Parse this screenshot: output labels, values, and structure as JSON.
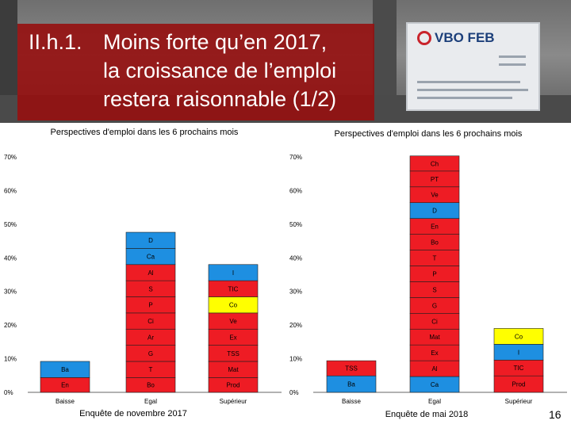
{
  "slide": {
    "title_code": "II.h.1.",
    "title_lines": [
      "Moins forte qu’en 2017,",
      "la croissance de l’emploi",
      "restera raisonnable (1/2)"
    ],
    "sign_brand": "VBO FEB",
    "page_number": "16"
  },
  "chart_data": [
    {
      "type": "bar",
      "stacked": true,
      "title": "Perspectives d'emploi dans les 6 prochains mois",
      "caption": "Enquête de novembre 2017",
      "categories": [
        "Baisse",
        "Egal",
        "Supérieur"
      ],
      "yticks": [
        "0%",
        "10%",
        "20%",
        "30%",
        "40%",
        "50%",
        "60%",
        "70%"
      ],
      "ylim": [
        0,
        70
      ],
      "colors": {
        "Red": "#ee1c24",
        "Blue": "#1e8fe1",
        "Yellow": "#ffff00"
      },
      "segments": [
        [
          {
            "label": "En",
            "value": 4.4,
            "color": "Red"
          },
          {
            "label": "Ba",
            "value": 4.8,
            "color": "Blue"
          }
        ],
        [
          {
            "label": "Bo",
            "value": 4.4,
            "color": "Red"
          },
          {
            "label": "T",
            "value": 4.8,
            "color": "Red"
          },
          {
            "label": "G",
            "value": 4.8,
            "color": "Red"
          },
          {
            "label": "Ar",
            "value": 4.8,
            "color": "Red"
          },
          {
            "label": "Ci",
            "value": 4.8,
            "color": "Red"
          },
          {
            "label": "P",
            "value": 4.8,
            "color": "Red"
          },
          {
            "label": "S",
            "value": 4.8,
            "color": "Red"
          },
          {
            "label": "Al",
            "value": 4.8,
            "color": "Red"
          },
          {
            "label": "Ca",
            "value": 4.8,
            "color": "Blue"
          },
          {
            "label": "D",
            "value": 4.8,
            "color": "Blue"
          }
        ],
        [
          {
            "label": "Prod",
            "value": 4.4,
            "color": "Red"
          },
          {
            "label": "Mat",
            "value": 4.8,
            "color": "Red"
          },
          {
            "label": "TSS",
            "value": 4.8,
            "color": "Red"
          },
          {
            "label": "Ex",
            "value": 4.8,
            "color": "Red"
          },
          {
            "label": "Ve",
            "value": 4.8,
            "color": "Red"
          },
          {
            "label": "Co",
            "value": 4.8,
            "color": "Yellow"
          },
          {
            "label": "TIC",
            "value": 4.8,
            "color": "Red"
          },
          {
            "label": "I",
            "value": 4.8,
            "color": "Blue"
          }
        ]
      ]
    },
    {
      "type": "bar",
      "stacked": true,
      "title": "Perspectives d'emploi dans les 6 prochains mois",
      "caption": "Enquête de mai 2018",
      "categories": [
        "Baisse",
        "Egal",
        "Supérieur"
      ],
      "yticks": [
        "0%",
        "10%",
        "20%",
        "30%",
        "40%",
        "50%",
        "60%",
        "70%"
      ],
      "ylim": [
        0,
        70
      ],
      "colors": {
        "Red": "#ee1c24",
        "Blue": "#1e8fe1",
        "Yellow": "#ffff00"
      },
      "segments": [
        [
          {
            "label": "Ba",
            "value": 4.9,
            "color": "Blue"
          },
          {
            "label": "TSS",
            "value": 4.5,
            "color": "Red"
          }
        ],
        [
          {
            "label": "Ca",
            "value": 4.7,
            "color": "Blue"
          },
          {
            "label": "Al",
            "value": 4.7,
            "color": "Red"
          },
          {
            "label": "Ex",
            "value": 4.7,
            "color": "Red"
          },
          {
            "label": "Mat",
            "value": 4.7,
            "color": "Red"
          },
          {
            "label": "Ci",
            "value": 4.7,
            "color": "Red"
          },
          {
            "label": "G",
            "value": 4.7,
            "color": "Red"
          },
          {
            "label": "S",
            "value": 4.7,
            "color": "Red"
          },
          {
            "label": "P",
            "value": 4.7,
            "color": "Red"
          },
          {
            "label": "T",
            "value": 4.7,
            "color": "Red"
          },
          {
            "label": "Bo",
            "value": 4.7,
            "color": "Red"
          },
          {
            "label": "En",
            "value": 4.7,
            "color": "Red"
          },
          {
            "label": "D",
            "value": 4.7,
            "color": "Blue"
          },
          {
            "label": "Ve",
            "value": 4.7,
            "color": "Red"
          },
          {
            "label": "PT",
            "value": 4.7,
            "color": "Red"
          },
          {
            "label": "Ch",
            "value": 4.5,
            "color": "Red"
          }
        ],
        [
          {
            "label": "Prod",
            "value": 4.9,
            "color": "Red"
          },
          {
            "label": "TIC",
            "value": 4.7,
            "color": "Red"
          },
          {
            "label": "I",
            "value": 4.7,
            "color": "Blue"
          },
          {
            "label": "Co",
            "value": 4.7,
            "color": "Yellow"
          }
        ]
      ]
    }
  ]
}
